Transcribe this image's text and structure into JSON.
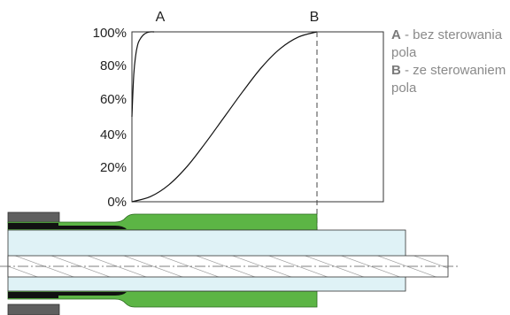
{
  "chart_data": {
    "type": "line",
    "ylim": [
      0,
      100
    ],
    "ytick_labels": [
      "0%",
      "20%",
      "40%",
      "60%",
      "80%",
      "100%"
    ],
    "series": [
      {
        "name": "A",
        "x": [
          0,
          0.01,
          0.02,
          0.03,
          0.04,
          0.06,
          0.08,
          0.1,
          0.12
        ],
        "y": [
          50,
          75,
          86,
          92,
          95,
          98,
          99.5,
          100,
          100
        ]
      },
      {
        "name": "B",
        "x": [
          0,
          0.1,
          0.2,
          0.3,
          0.4,
          0.5,
          0.6,
          0.7,
          0.8,
          0.9,
          1.0
        ],
        "y": [
          0,
          3,
          10,
          21,
          35,
          50,
          65,
          79,
          90,
          97,
          100
        ]
      }
    ],
    "markers": [
      {
        "label": "B",
        "x": 1.0,
        "style": "dashed"
      }
    ],
    "grid": false
  },
  "legend": {
    "a_key": "A",
    "a_text": " - bez sterowania pola",
    "b_key": "B",
    "b_text": " - ze sterowaniem pola"
  },
  "colors": {
    "insulation": "#dff2f6",
    "stress_control": "#5cb545",
    "sheath_dark": "#5f5f5f",
    "conductor_hatch": "#8c8c8c",
    "axis": "#333333",
    "curve": "#111111"
  }
}
